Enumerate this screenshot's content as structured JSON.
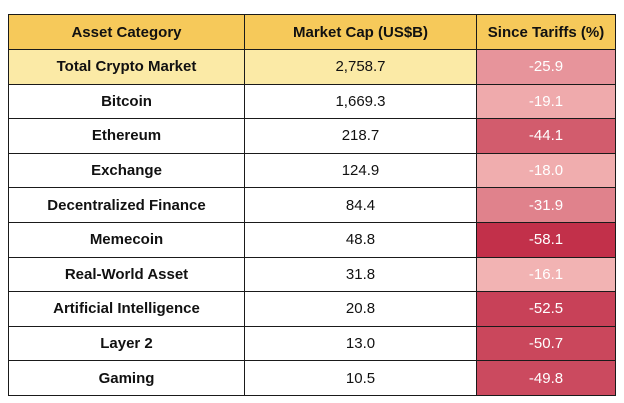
{
  "chart_data": {
    "type": "table",
    "columns": [
      "Asset Category",
      "Market Cap (US$B)",
      "Since Tariffs (%)"
    ],
    "rows": [
      {
        "category": "Total Crypto Market",
        "market_cap": "2,758.7",
        "change": "-25.9",
        "change_value": -25.9
      },
      {
        "category": "Bitcoin",
        "market_cap": "1,669.3",
        "change": "-19.1",
        "change_value": -19.1
      },
      {
        "category": "Ethereum",
        "market_cap": "218.7",
        "change": "-44.1",
        "change_value": -44.1
      },
      {
        "category": "Exchange",
        "market_cap": "124.9",
        "change": "-18.0",
        "change_value": -18.0
      },
      {
        "category": "Decentralized Finance",
        "market_cap": "84.4",
        "change": "-31.9",
        "change_value": -31.9
      },
      {
        "category": "Memecoin",
        "market_cap": "48.8",
        "change": "-58.1",
        "change_value": -58.1
      },
      {
        "category": "Real-World Asset",
        "market_cap": "31.8",
        "change": "-16.1",
        "change_value": -16.1
      },
      {
        "category": "Artificial Intelligence",
        "market_cap": "20.8",
        "change": "-52.5",
        "change_value": -52.5
      },
      {
        "category": "Layer 2",
        "market_cap": "13.0",
        "change": "-50.7",
        "change_value": -50.7
      },
      {
        "category": "Gaming",
        "market_cap": "10.5",
        "change": "-49.8",
        "change_value": -49.8
      }
    ],
    "header_color": "#f6c95a",
    "highlight_row_color": "#fbeaa6",
    "heat_scale": {
      "light": "#f2b3b3",
      "dark": "#c2304a"
    }
  }
}
